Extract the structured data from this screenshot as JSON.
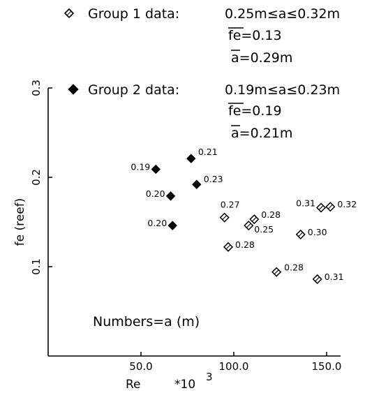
{
  "chart_data": {
    "type": "scatter",
    "title": "",
    "xlabel": "Re",
    "xlabel_multiplier": "*10",
    "xlabel_exponent": "3",
    "ylabel": "fe  (reef)",
    "xlim": [
      0,
      165
    ],
    "ylim": [
      0,
      0.3
    ],
    "x_ticks": [
      50,
      100,
      150
    ],
    "x_tick_labels": [
      "50.0",
      "100.0",
      "150.0"
    ],
    "y_ticks": [
      0.1,
      0.2,
      0.3
    ],
    "y_tick_labels": [
      "0.1",
      "0.2",
      "0.3"
    ],
    "grid": false,
    "annotation": "Numbers=a  (m)",
    "legend": [
      {
        "marker": "open-diamond",
        "label": "Group 1 data:",
        "range": "0.25m≤a≤0.32m",
        "mean_fe": "fe=0.13",
        "mean_a": "a=0.29m"
      },
      {
        "marker": "filled-diamond",
        "label": "Group 2 data:",
        "range": "0.19m≤a≤0.23m",
        "mean_fe": "fe=0.19",
        "mean_a": "a=0.21m"
      }
    ],
    "series": [
      {
        "group": 1,
        "marker": "open-diamond",
        "points": [
          {
            "x": 95,
            "y": 0.155,
            "label": "0.27"
          },
          {
            "x": 97,
            "y": 0.122,
            "label": "0.28"
          },
          {
            "x": 108,
            "y": 0.146,
            "label": "0.25"
          },
          {
            "x": 111,
            "y": 0.153,
            "label": "0.28"
          },
          {
            "x": 123,
            "y": 0.094,
            "label": "0.28"
          },
          {
            "x": 136,
            "y": 0.136,
            "label": "0.30"
          },
          {
            "x": 145,
            "y": 0.086,
            "label": "0.31"
          },
          {
            "x": 147,
            "y": 0.166,
            "label": "0.31"
          },
          {
            "x": 152,
            "y": 0.167,
            "label": "0.32"
          }
        ]
      },
      {
        "group": 2,
        "marker": "filled-diamond",
        "points": [
          {
            "x": 58,
            "y": 0.209,
            "label": "0.19"
          },
          {
            "x": 66,
            "y": 0.179,
            "label": "0.20"
          },
          {
            "x": 67,
            "y": 0.146,
            "label": "0.20"
          },
          {
            "x": 77,
            "y": 0.221,
            "label": "0.21"
          },
          {
            "x": 80,
            "y": 0.192,
            "label": "0.23"
          }
        ]
      }
    ]
  }
}
